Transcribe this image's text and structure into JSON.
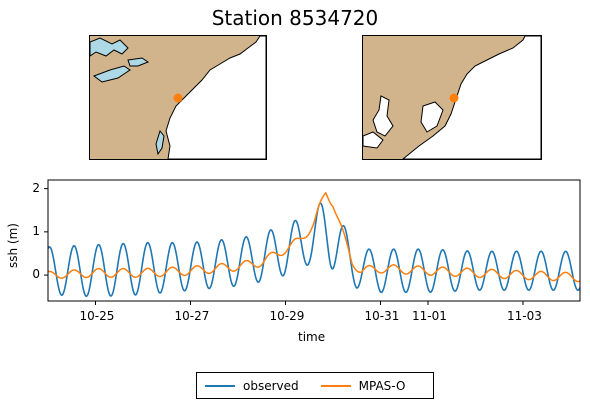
{
  "title": "Station 8534720",
  "maps": {
    "land_color": "#d2b48c",
    "water_color": "#add8e6",
    "station_color": "#ff7f0e"
  },
  "chart_data": {
    "type": "line",
    "xlabel": "time",
    "ylabel": "ssh (m)",
    "x_ticks": [
      "10-25",
      "10-27",
      "10-29",
      "10-31",
      "11-01",
      "11-03"
    ],
    "x_tick_days": [
      1,
      3,
      5,
      7,
      8,
      10
    ],
    "y_ticks": [
      "0",
      "1",
      "2"
    ],
    "y_tick_values": [
      0,
      1,
      2
    ],
    "x_range_days": [
      0,
      11.2
    ],
    "ylim": [
      -0.6,
      2.2
    ],
    "legend_position": "bottom-center",
    "series": [
      {
        "name": "observed",
        "color": "#1f77b4",
        "tidal_period_days": 0.5175,
        "x_days": [
          0,
          1,
          2,
          3,
          4,
          4.5,
          5,
          5.5,
          5.9,
          6.2,
          6.5,
          7,
          8,
          9,
          10,
          11.2
        ],
        "mean": [
          0.1,
          0.1,
          0.15,
          0.2,
          0.3,
          0.4,
          0.6,
          0.8,
          1.05,
          0.6,
          0.15,
          0.1,
          0.1,
          0.1,
          0.1,
          0.1
        ],
        "amplitude": [
          0.55,
          0.6,
          0.6,
          0.55,
          0.55,
          0.55,
          0.6,
          0.55,
          0.85,
          0.6,
          0.45,
          0.5,
          0.5,
          0.45,
          0.45,
          0.45
        ]
      },
      {
        "name": "MPAS-O",
        "color": "#ff7f0e",
        "tidal_period_days": 0.5175,
        "x_days": [
          0,
          1,
          2,
          3,
          4,
          4.5,
          5,
          5.3,
          5.6,
          5.85,
          6.0,
          6.25,
          6.4,
          6.6,
          7,
          8,
          9,
          10,
          11.2
        ],
        "mean": [
          0.0,
          0.05,
          0.05,
          0.1,
          0.2,
          0.3,
          0.6,
          0.8,
          1.2,
          1.9,
          1.7,
          0.8,
          0.3,
          0.1,
          0.15,
          0.1,
          0.05,
          0.0,
          -0.05
        ],
        "amplitude": [
          0.08,
          0.1,
          0.1,
          0.1,
          0.1,
          0.1,
          0.1,
          0.1,
          0.12,
          0.12,
          0.12,
          0.1,
          0.1,
          0.1,
          0.1,
          0.1,
          0.1,
          0.1,
          0.1
        ]
      }
    ]
  }
}
